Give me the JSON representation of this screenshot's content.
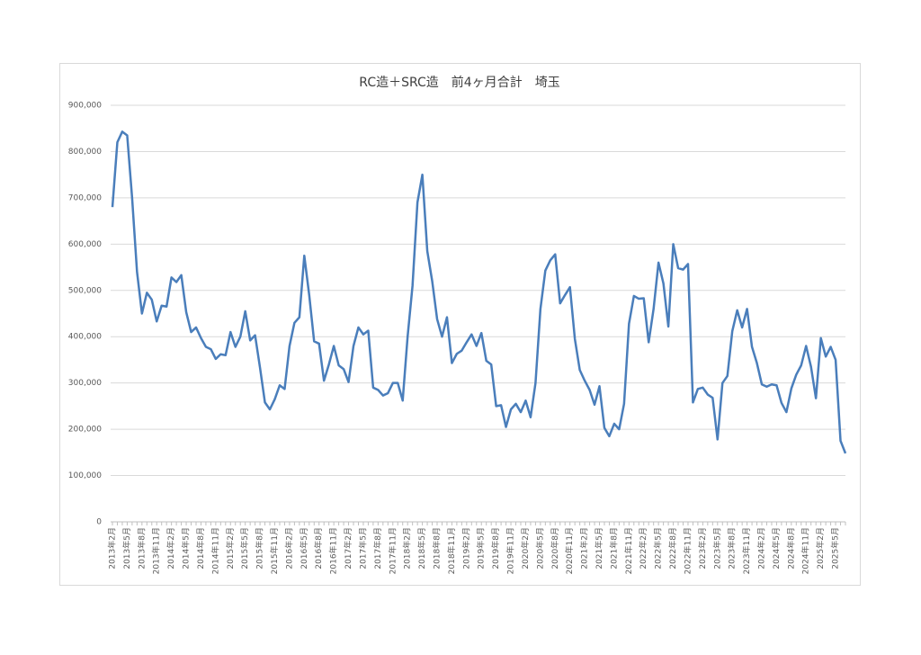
{
  "chart_data": {
    "type": "line",
    "title": "RC造＋SRC造　前4ヶ月合計　埼玉",
    "categories": [
      "2013年2月",
      null,
      null,
      "2013年5月",
      null,
      null,
      "2013年8月",
      null,
      null,
      "2013年11月",
      null,
      null,
      "2014年2月",
      null,
      null,
      "2014年5月",
      null,
      null,
      "2014年8月",
      null,
      null,
      "2014年11月",
      null,
      null,
      "2015年2月",
      null,
      null,
      "2015年5月",
      null,
      null,
      "2015年8月",
      null,
      null,
      "2015年11月",
      null,
      null,
      "2016年2月",
      null,
      null,
      "2016年5月",
      null,
      null,
      "2016年8月",
      null,
      null,
      "2016年11月",
      null,
      null,
      "2017年2月",
      null,
      null,
      "2017年5月",
      null,
      null,
      "2017年8月",
      null,
      null,
      "2017年11月",
      null,
      null,
      "2018年2月",
      null,
      null,
      "2018年5月",
      null,
      null,
      "2018年8月",
      null,
      null,
      "2018年11月",
      null,
      null,
      "2019年2月",
      null,
      null,
      "2019年5月",
      null,
      null,
      "2019年8月",
      null,
      null,
      "2019年11月",
      null,
      null,
      "2020年2月",
      null,
      null,
      "2020年5月",
      null,
      null,
      "2020年8月",
      null,
      null,
      "2020年11月",
      null,
      null,
      "2021年2月",
      null,
      null,
      "2021年5月",
      null,
      null,
      "2021年8月",
      null,
      null,
      "2021年11月",
      null,
      null,
      "2022年2月",
      null,
      null,
      "2022年5月",
      null,
      null,
      "2022年8月",
      null,
      null,
      "2022年11月",
      null,
      null,
      "2023年2月",
      null,
      null,
      "2023年5月",
      null,
      null,
      "2023年8月",
      null,
      null,
      "2023年11月",
      null,
      null,
      "2024年2月",
      null,
      null,
      "2024年5月",
      null,
      null,
      "2024年8月",
      null,
      null,
      "2024年11月",
      null,
      null,
      "2025年2月",
      null,
      null,
      "2025年5月",
      null,
      null
    ],
    "values": [
      680000,
      820000,
      843000,
      835000,
      700000,
      540000,
      450000,
      495000,
      480000,
      433000,
      467000,
      465000,
      528000,
      518000,
      533000,
      453000,
      410000,
      420000,
      397000,
      378000,
      373000,
      352000,
      362000,
      360000,
      410000,
      378000,
      400000,
      455000,
      392000,
      403000,
      333000,
      258000,
      243000,
      265000,
      295000,
      287000,
      380000,
      430000,
      442000,
      575000,
      490000,
      390000,
      385000,
      305000,
      340000,
      380000,
      338000,
      330000,
      302000,
      380000,
      420000,
      405000,
      413000,
      290000,
      285000,
      273000,
      278000,
      300000,
      300000,
      262000,
      400000,
      510000,
      690000,
      750000,
      585000,
      520000,
      438000,
      400000,
      442000,
      343000,
      363000,
      370000,
      388000,
      405000,
      380000,
      408000,
      348000,
      340000,
      250000,
      252000,
      205000,
      243000,
      255000,
      237000,
      262000,
      226000,
      300000,
      460000,
      543000,
      565000,
      578000,
      472000,
      490000,
      507000,
      395000,
      328000,
      305000,
      285000,
      253000,
      293000,
      203000,
      185000,
      212000,
      200000,
      255000,
      428000,
      488000,
      482000,
      483000,
      388000,
      460000,
      560000,
      515000,
      422000,
      600000,
      548000,
      545000,
      557000,
      258000,
      287000,
      290000,
      275000,
      268000,
      178000,
      300000,
      315000,
      412000,
      457000,
      420000,
      460000,
      378000,
      343000,
      297000,
      292000,
      297000,
      295000,
      257000,
      237000,
      288000,
      318000,
      338000,
      380000,
      335000,
      267000,
      397000,
      357000,
      378000,
      350000,
      175000,
      148000
    ],
    "color": "#4a7ebb",
    "ylim": [
      0,
      900000
    ],
    "yticks": [
      0,
      {
        "value": 100000,
        "label": "100,000"
      },
      {
        "value": 200000,
        "label": "200,000"
      },
      {
        "value": 300000,
        "label": "300,000"
      },
      {
        "value": 400000,
        "label": "400,000"
      },
      {
        "value": 500000,
        "label": "500,000"
      },
      {
        "value": 600000,
        "label": "600,000"
      },
      {
        "value": 700000,
        "label": "700,000"
      },
      {
        "value": 800000,
        "label": "800,000"
      },
      {
        "value": 900000,
        "label": "900,000"
      }
    ],
    "grid": true
  }
}
